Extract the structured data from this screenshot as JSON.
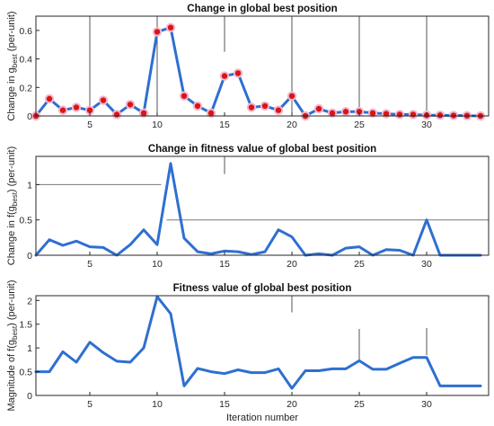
{
  "chart_data": [
    {
      "type": "line",
      "title": "Change in global best position",
      "ylabel_parts": [
        "Change in g",
        "best",
        " (per-unit)"
      ],
      "xlabel": "",
      "xlim": [
        1,
        34.6
      ],
      "ylim": [
        0,
        0.7
      ],
      "xticks": [
        5,
        10,
        15,
        20,
        25,
        30
      ],
      "yticks": [
        0,
        0.2,
        0.4,
        0.6
      ],
      "yticklabels": [
        "0",
        "0.2",
        "0.4",
        "0.6"
      ],
      "grid_x_full": [
        5,
        10,
        20,
        25,
        30
      ],
      "grid_x_partial": [
        {
          "x": 15,
          "y_from": 0.45,
          "y_to": 0.7
        }
      ],
      "grid_y": [],
      "series": [
        {
          "color": "#2e6fd1",
          "marker_color": "#d91515",
          "marker_halo": "#f2b7cf",
          "x": [
            1,
            2,
            3,
            4,
            5,
            6,
            7,
            8,
            9,
            10,
            11,
            12,
            13,
            14,
            15,
            16,
            17,
            18,
            19,
            20,
            21,
            22,
            23,
            24,
            25,
            26,
            27,
            28,
            29,
            30,
            31,
            32,
            33,
            34
          ],
          "values": [
            0.0,
            0.12,
            0.04,
            0.06,
            0.04,
            0.11,
            0.01,
            0.08,
            0.02,
            0.59,
            0.62,
            0.14,
            0.07,
            0.02,
            0.28,
            0.3,
            0.06,
            0.07,
            0.04,
            0.14,
            0.0,
            0.05,
            0.02,
            0.03,
            0.03,
            0.02,
            0.015,
            0.01,
            0.01,
            0.005,
            0.005,
            0.003,
            0.002,
            0.0
          ]
        }
      ]
    },
    {
      "type": "line",
      "title": "Change in fitness value of global best position",
      "ylabel_parts": [
        "Change in f(g",
        "best",
        ") (per-unit)"
      ],
      "xlabel": "",
      "xlim": [
        1,
        34.6
      ],
      "ylim": [
        0,
        1.4
      ],
      "xticks": [
        5,
        10,
        15,
        20,
        25,
        30
      ],
      "yticks": [
        0,
        0.5,
        1
      ],
      "yticklabels": [
        "0",
        "0.5",
        "1"
      ],
      "grid_x_full": [],
      "grid_x_partial": [
        {
          "x": 15,
          "y_from": 1.15,
          "y_to": 1.4
        }
      ],
      "grid_y": [
        {
          "y": 1,
          "x_from": 1,
          "x_to": 10.3
        },
        {
          "y": 0.5,
          "x_from": 10.7,
          "x_to": 34.6
        }
      ],
      "series": [
        {
          "color": "#2e6fd1",
          "x": [
            1,
            2,
            3,
            4,
            5,
            6,
            7,
            8,
            9,
            10,
            11,
            12,
            13,
            14,
            15,
            16,
            17,
            18,
            19,
            20,
            21,
            22,
            23,
            24,
            25,
            26,
            27,
            28,
            29,
            30,
            31,
            32,
            33,
            34
          ],
          "values": [
            0.0,
            0.22,
            0.14,
            0.2,
            0.12,
            0.11,
            0.0,
            0.15,
            0.36,
            0.15,
            1.3,
            0.24,
            0.05,
            0.02,
            0.06,
            0.05,
            0.01,
            0.05,
            0.36,
            0.26,
            0.0,
            0.02,
            0.0,
            0.1,
            0.12,
            0.0,
            0.08,
            0.07,
            0.0,
            0.5,
            0.0,
            0.0,
            0.0,
            0.0
          ]
        }
      ]
    },
    {
      "type": "line",
      "title": "Fitness value of global best position",
      "ylabel_parts": [
        "Magnitude of f(g",
        "best",
        ") (per-unit)"
      ],
      "xlabel": "Iteration number",
      "xlim": [
        1,
        34.6
      ],
      "ylim": [
        0,
        2.1
      ],
      "xticks": [
        5,
        10,
        15,
        20,
        25,
        30
      ],
      "yticks": [
        0,
        0.5,
        1,
        1.5,
        2
      ],
      "yticklabels": [
        "0",
        "0.5",
        "1",
        "1.5",
        "2"
      ],
      "grid_x_full": [],
      "grid_x_partial": [
        {
          "x": 20,
          "y_from": 1.75,
          "y_to": 2.1
        },
        {
          "x": 25,
          "y_from": 0.75,
          "y_to": 1.4
        },
        {
          "x": 30,
          "y_from": 0.85,
          "y_to": 1.42
        }
      ],
      "grid_y": [],
      "series": [
        {
          "color": "#2e6fd1",
          "x": [
            1,
            2,
            3,
            4,
            5,
            6,
            7,
            8,
            9,
            10,
            11,
            12,
            13,
            14,
            15,
            16,
            17,
            18,
            19,
            20,
            21,
            22,
            23,
            24,
            25,
            26,
            27,
            28,
            29,
            30,
            31,
            32,
            33,
            34
          ],
          "values": [
            0.5,
            0.5,
            0.92,
            0.7,
            1.12,
            0.9,
            0.72,
            0.7,
            1.0,
            2.08,
            1.72,
            0.2,
            0.57,
            0.5,
            0.46,
            0.54,
            0.48,
            0.48,
            0.56,
            0.15,
            0.52,
            0.52,
            0.56,
            0.56,
            0.73,
            0.55,
            0.55,
            0.68,
            0.8,
            0.8,
            0.2,
            0.2,
            0.2,
            0.2
          ]
        }
      ]
    }
  ]
}
